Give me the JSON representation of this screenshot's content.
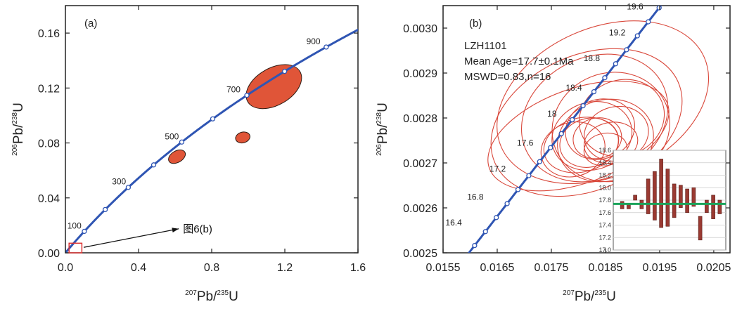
{
  "chart_data": [
    {
      "panel_label": "(a)",
      "type": "concordia",
      "xlabel": {
        "pre": "207",
        "main1": "Pb/",
        "sup2": "235",
        "main2": "U"
      },
      "ylabel": {
        "pre": "206",
        "main1": "Pb/",
        "sup2": "238",
        "main2": "U"
      },
      "xlim": [
        0,
        1.6
      ],
      "ylim": [
        0,
        0.18
      ],
      "xticks": [
        0,
        0.4,
        0.8,
        1.2,
        1.6
      ],
      "xtick_labels": [
        "0.0",
        "0.4",
        "0.8",
        "1.2",
        "1.6"
      ],
      "yticks": [
        0,
        0.04,
        0.08,
        0.12,
        0.16
      ],
      "ytick_labels": [
        "0.00",
        "0.04",
        "0.08",
        "0.12",
        "0.16"
      ],
      "concordia_age_labels": [
        {
          "text": "100",
          "x": 0.103,
          "y": 0.0156
        },
        {
          "text": "300",
          "x": 0.347,
          "y": 0.0477
        },
        {
          "text": "500",
          "x": 0.636,
          "y": 0.0806
        },
        {
          "text": "700",
          "x": 0.973,
          "y": 0.1147
        },
        {
          "text": "900",
          "x": 1.41,
          "y": 0.1499
        }
      ],
      "ellipses": [
        {
          "cx": 1.14,
          "cy": 0.121,
          "rx": 0.165,
          "ry": 0.0045,
          "angle_deg": -30
        },
        {
          "cx": 0.97,
          "cy": 0.084,
          "rx": 0.04,
          "ry": 0.0013,
          "angle_deg": -15
        },
        {
          "cx": 0.61,
          "cy": 0.07,
          "rx": 0.05,
          "ry": 0.0014,
          "angle_deg": -30
        }
      ],
      "annotation": {
        "text": "图6(b)",
        "from": [
          0.1,
          0.004
        ],
        "to": [
          0.62,
          0.0175
        ]
      },
      "inset_box": {
        "x": [
          0.02,
          0.09
        ],
        "y": [
          0.0,
          0.007
        ]
      }
    },
    {
      "panel_label": "(b)",
      "type": "concordia",
      "xlabel": {
        "pre": "207",
        "main1": "Pb/",
        "sup2": "235",
        "main2": "U"
      },
      "ylabel": {
        "pre": "206",
        "main1": "Pb/",
        "sup2": "238",
        "main2": "U"
      },
      "xlim": [
        0.0155,
        0.0208
      ],
      "ylim": [
        0.0025,
        0.00305
      ],
      "xticks": [
        0.0155,
        0.0165,
        0.0175,
        0.0185,
        0.0195,
        0.0205
      ],
      "xtick_labels": [
        "0.0155",
        "0.0165",
        "0.0175",
        "0.0185",
        "0.0195",
        "0.0205"
      ],
      "yticks": [
        0.0025,
        0.0026,
        0.0027,
        0.0028,
        0.0029,
        0.003
      ],
      "ytick_labels": [
        "0.0025",
        "0.0026",
        "0.0027",
        "0.0028",
        "0.0029",
        "0.0030"
      ],
      "sample": "LZH1101",
      "mean_age": "Mean Age=17.7±0.1Ma",
      "mswd": "MSWD=0.83,n=16",
      "concordia_age_labels": [
        {
          "text": "16.4",
          "x": 0.0159,
          "y": 0.002555
        },
        {
          "text": "16.8",
          "x": 0.0163,
          "y": 0.002612
        },
        {
          "text": "17.2",
          "x": 0.01671,
          "y": 0.002674
        },
        {
          "text": "17.6",
          "x": 0.01722,
          "y": 0.002732
        },
        {
          "text": "18",
          "x": 0.01765,
          "y": 0.002797
        },
        {
          "text": "18.4",
          "x": 0.01812,
          "y": 0.002855
        },
        {
          "text": "18.8",
          "x": 0.01845,
          "y": 0.00292
        },
        {
          "text": "19.2",
          "x": 0.01892,
          "y": 0.002977
        },
        {
          "text": "19.6",
          "x": 0.01925,
          "y": 0.003035
        }
      ],
      "ellipses": [
        {
          "cx": 0.01845,
          "cy": 0.002835,
          "rx": 0.00205,
          "ry": 5.5e-05,
          "angle_deg": -24
        },
        {
          "cx": 0.01815,
          "cy": 0.00279,
          "rx": 0.00185,
          "ry": 5e-05,
          "angle_deg": -24
        },
        {
          "cx": 0.018,
          "cy": 0.00276,
          "rx": 0.00175,
          "ry": 3.5e-05,
          "angle_deg": -20
        },
        {
          "cx": 0.0183,
          "cy": 0.0028,
          "rx": 0.0014,
          "ry": 4.5e-05,
          "angle_deg": -26
        },
        {
          "cx": 0.0186,
          "cy": 0.00278,
          "rx": 0.0011,
          "ry": 4e-05,
          "angle_deg": -22
        },
        {
          "cx": 0.0185,
          "cy": 0.00275,
          "rx": 0.0009,
          "ry": 3e-05,
          "angle_deg": -18
        },
        {
          "cx": 0.01825,
          "cy": 0.00276,
          "rx": 0.00075,
          "ry": 2.5e-05,
          "angle_deg": -18
        },
        {
          "cx": 0.01805,
          "cy": 0.00274,
          "rx": 0.0007,
          "ry": 2e-05,
          "angle_deg": -15
        },
        {
          "cx": 0.0184,
          "cy": 0.002775,
          "rx": 0.00065,
          "ry": 2.2e-05,
          "angle_deg": -20
        },
        {
          "cx": 0.0187,
          "cy": 0.002765,
          "rx": 0.0006,
          "ry": 2e-05,
          "angle_deg": -15
        },
        {
          "cx": 0.0182,
          "cy": 0.002745,
          "rx": 0.00055,
          "ry": 1.8e-05,
          "angle_deg": -15
        },
        {
          "cx": 0.0188,
          "cy": 0.0028,
          "rx": 0.0008,
          "ry": 2.8e-05,
          "angle_deg": -22
        },
        {
          "cx": 0.0179,
          "cy": 0.00273,
          "rx": 0.0006,
          "ry": 2e-05,
          "angle_deg": -18
        },
        {
          "cx": 0.0186,
          "cy": 0.002745,
          "rx": 0.0005,
          "ry": 1.5e-05,
          "angle_deg": -12
        },
        {
          "cx": 0.01835,
          "cy": 0.002755,
          "rx": 0.00045,
          "ry": 1.5e-05,
          "angle_deg": -12
        },
        {
          "cx": 0.0185,
          "cy": 0.00273,
          "rx": 0.0004,
          "ry": 1.2e-05,
          "angle_deg": -10
        }
      ],
      "inset": {
        "type": "bar",
        "ylim": [
          17.0,
          18.6
        ],
        "yticks": [
          17.0,
          17.2,
          17.4,
          17.6,
          17.8,
          18.0,
          18.2,
          18.4,
          18.6
        ],
        "ytick_labels": [
          "17.0",
          "17.2",
          "17.4",
          "17.6",
          "17.8",
          "18.0",
          "18.2",
          "18.4",
          "18.6"
        ],
        "mean": 17.74,
        "bars": [
          [
            17.66,
            17.78
          ],
          [
            17.66,
            17.75
          ],
          [
            17.8,
            17.88
          ],
          [
            17.66,
            17.8
          ],
          [
            17.58,
            18.14
          ],
          [
            17.48,
            18.26
          ],
          [
            17.36,
            18.46
          ],
          [
            17.38,
            18.3
          ],
          [
            17.52,
            18.06
          ],
          [
            17.68,
            18.04
          ],
          [
            17.6,
            17.98
          ],
          [
            17.7,
            18.0
          ],
          [
            17.16,
            17.54
          ],
          [
            17.6,
            17.8
          ],
          [
            17.5,
            17.88
          ],
          [
            17.58,
            17.8
          ]
        ]
      }
    }
  ],
  "colors": {
    "concordia": "#2f55b3",
    "ellipse_fill": "#e05538",
    "ellipse_stroke": "#2a1a12",
    "ellipse_b_stroke": "#d9473a",
    "bar": "#9a3a32",
    "mean_line": "#1aa35a",
    "axis": "#222222",
    "grid": "#cccccc"
  }
}
